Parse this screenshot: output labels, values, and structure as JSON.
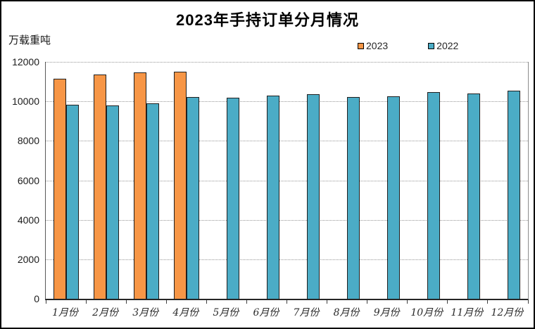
{
  "chart_data": {
    "type": "bar",
    "title": "2023年手持订单分月情况",
    "unit_label": "万载重吨",
    "categories": [
      "1月份",
      "2月份",
      "3月份",
      "4月份",
      "5月份",
      "6月份",
      "7月份",
      "8月份",
      "9月份",
      "10月份",
      "11月份",
      "12月份"
    ],
    "series": [
      {
        "name": "2023",
        "color": "#F79646",
        "values": [
          11143,
          11362,
          11452,
          11506,
          null,
          null,
          null,
          null,
          null,
          null,
          null,
          null
        ]
      },
      {
        "name": "2022",
        "color": "#4BACC6",
        "values": [
          9843,
          9790,
          9906,
          10218,
          10182,
          10274,
          10366,
          10220,
          10259,
          10477,
          10407,
          10557
        ]
      }
    ],
    "ylim": [
      0,
      12000
    ],
    "yticks": [
      0,
      2000,
      4000,
      6000,
      8000,
      10000,
      12000
    ],
    "grid": "horizontal-dotted",
    "legend_position": "top-right",
    "bar_outline_color": "#1f1f1f",
    "gridline_color": "#969696"
  }
}
